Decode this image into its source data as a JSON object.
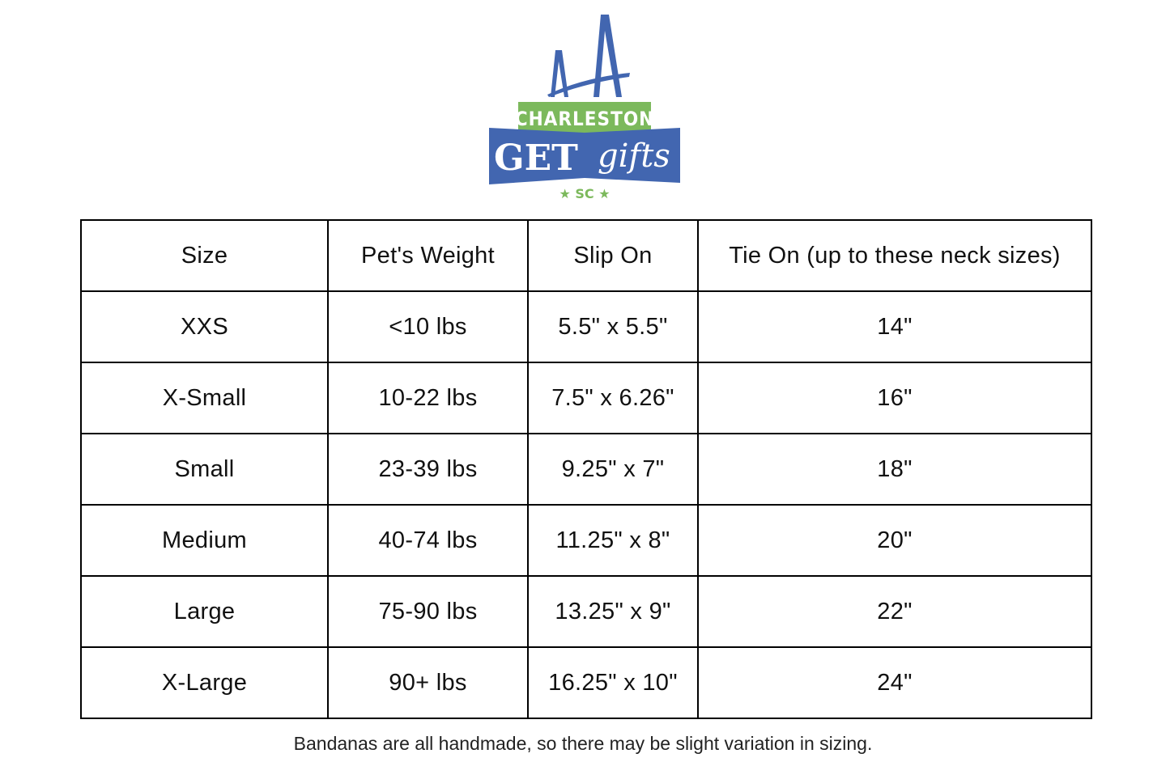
{
  "logo": {
    "text_top": "CHARLESTON",
    "text_main": "GET",
    "text_script": "gifts",
    "text_bottom": "SC",
    "colors": {
      "blue": "#4266b0",
      "green": "#7cb95c"
    }
  },
  "table": {
    "headers": [
      "Size",
      "Pet's Weight",
      "Slip On",
      "Tie On (up to these neck sizes)"
    ],
    "rows": [
      [
        "XXS",
        "<10 lbs",
        "5.5\" x 5.5\"",
        "14\""
      ],
      [
        "X-Small",
        "10-22 lbs",
        "7.5\" x 6.26\"",
        "16\""
      ],
      [
        "Small",
        "23-39 lbs",
        "9.25\" x 7\"",
        "18\""
      ],
      [
        "Medium",
        "40-74 lbs",
        "11.25\" x 8\"",
        "20\""
      ],
      [
        "Large",
        "75-90 lbs",
        "13.25\" x 9\"",
        "22\""
      ],
      [
        "X-Large",
        "90+ lbs",
        "16.25\" x 10\"",
        "24\""
      ]
    ]
  },
  "footnote": "Bandanas are all handmade, so there may be slight variation in sizing."
}
